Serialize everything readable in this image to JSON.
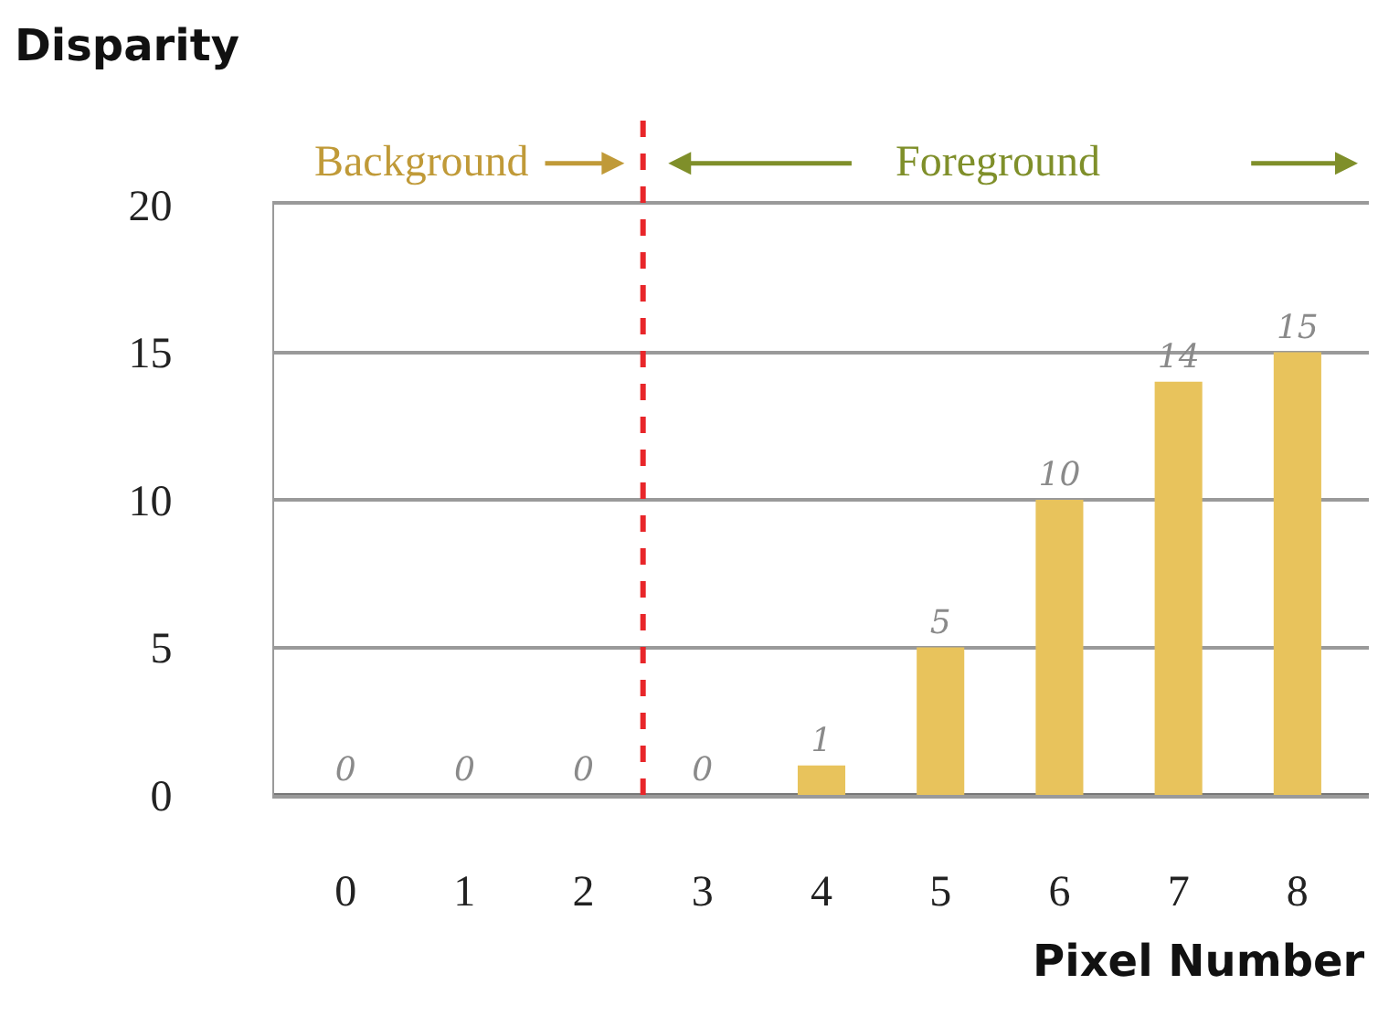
{
  "chart_data": {
    "type": "bar",
    "ylabel": "Disparity",
    "xlabel": "Pixel Number",
    "x": [
      0,
      1,
      2,
      3,
      4,
      5,
      6,
      7,
      8
    ],
    "xlim": [
      -0.6,
      8.6
    ],
    "xticks": [
      0,
      1,
      2,
      3,
      4,
      5,
      6,
      7,
      8
    ],
    "ref_lines": [
      {
        "axis": "x",
        "value": 2.5,
        "color": "#e8262a",
        "line_style": "dashed"
      }
    ],
    "values": [
      0,
      0,
      0,
      0,
      1,
      5,
      10,
      14,
      15
    ],
    "color": "#e8c35c",
    "ylim": [
      0,
      20
    ],
    "yticks": [
      0,
      5,
      10,
      15,
      20
    ],
    "grid": "y",
    "data_labels": true,
    "annotations": [
      "Background",
      "Foreground"
    ]
  }
}
